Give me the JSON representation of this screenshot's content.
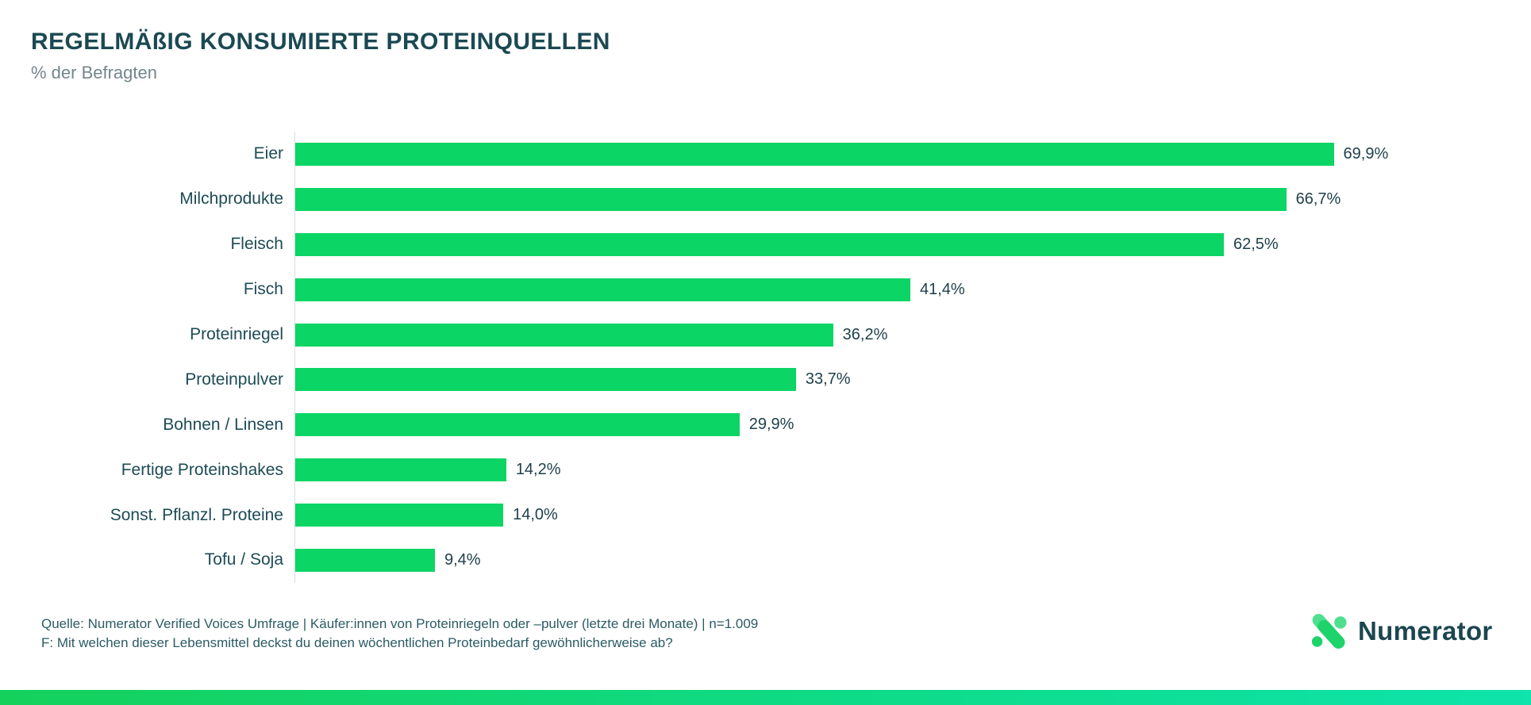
{
  "header": {
    "title": "REGELMÄßIG KONSUMIERTE PROTEINQUELLEN",
    "subtitle": "% der Befragten"
  },
  "chart_data": {
    "type": "bar",
    "orientation": "horizontal",
    "title": "REGELMÄßIG KONSUMIERTE PROTEINQUELLEN",
    "xlabel": "",
    "ylabel": "",
    "xlim": [
      0,
      75
    ],
    "grid": false,
    "legend_position": "none",
    "bar_color": "#0bd564",
    "categories": [
      "Eier",
      "Milchprodukte",
      "Fleisch",
      "Fisch",
      "Proteinriegel",
      "Proteinpulver",
      "Bohnen / Linsen",
      "Fertige Proteinshakes",
      "Sonst. Pflanzl. Proteine",
      "Tofu / Soja"
    ],
    "values": [
      69.9,
      66.7,
      62.5,
      41.4,
      36.2,
      33.7,
      29.9,
      14.2,
      14.0,
      9.4
    ],
    "value_labels": [
      "69,9%",
      "66,7%",
      "62,5%",
      "41,4%",
      "36,2%",
      "33,7%",
      "29,9%",
      "14,2%",
      "14,0%",
      "9,4%"
    ]
  },
  "footer": {
    "source_line": "Quelle: Numerator Verified Voices Umfrage | Käufer:innen von Proteinriegeln oder –pulver (letzte drei Monate) | n=1.009",
    "question_line": "F: Mit welchen dieser Lebensmittel deckst du deinen wöchentlichen Proteinbedarf gewöhnlicherweise ab?"
  },
  "logo": {
    "text": "Numerator"
  },
  "colors": {
    "title": "#1b4952",
    "subtitle": "#73868d",
    "bar": "#0bd564",
    "axis": "#d9dee1",
    "footer_text": "#2b5b64",
    "bottom_bar_left": "#14d15c",
    "bottom_bar_right": "#0ee4ab",
    "logo_green_light": "#4fdf8e",
    "logo_green": "#1fd36b"
  }
}
